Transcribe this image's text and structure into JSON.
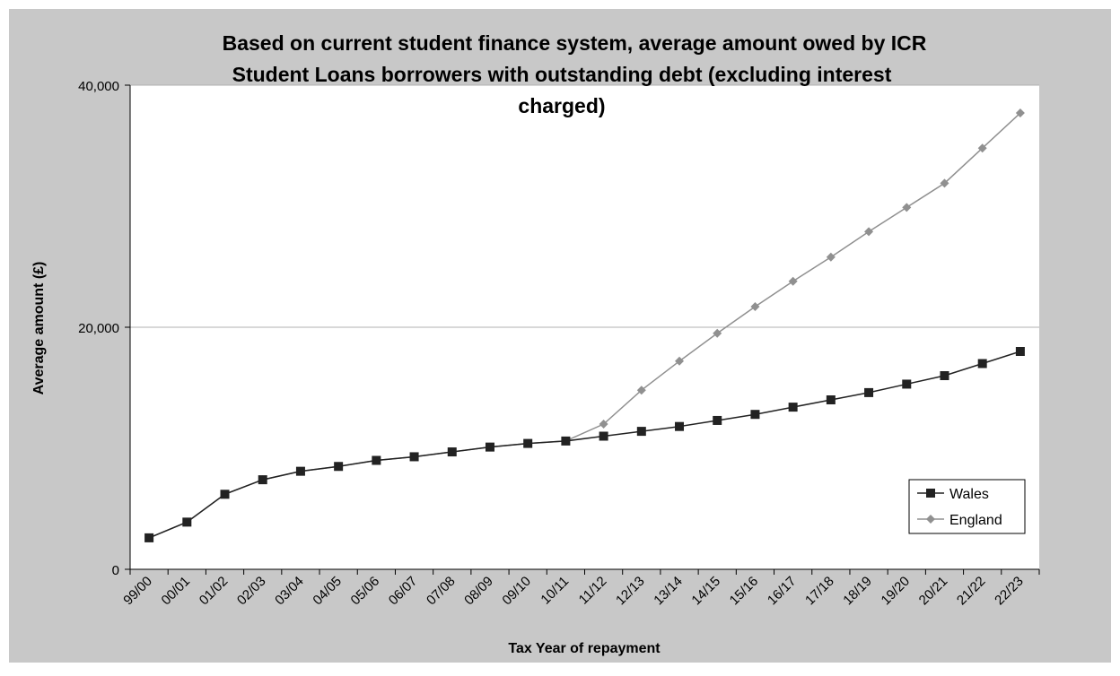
{
  "chart_data": {
    "type": "line",
    "title_lines": [
      "Based on current student finance system, average amount owed by ICR",
      "Student Loans borrowers with outstanding debt (excluding interest",
      "charged)"
    ],
    "xlabel": "Tax Year of repayment",
    "ylabel": "Average amount (£)",
    "ylim": [
      0,
      40000
    ],
    "y_ticks": [
      0,
      20000,
      40000
    ],
    "y_tick_labels": [
      "0",
      "20,000",
      "40,000"
    ],
    "grid": "horizontal",
    "legend_position": "bottom-right",
    "categories": [
      "99/00",
      "00/01",
      "01/02",
      "02/03",
      "03/04",
      "04/05",
      "05/06",
      "06/07",
      "07/08",
      "08/09",
      "09/10",
      "10/11",
      "11/12",
      "12/13",
      "13/14",
      "14/15",
      "15/16",
      "16/17",
      "17/18",
      "18/19",
      "19/20",
      "20/21",
      "21/22",
      "22/23"
    ],
    "series": [
      {
        "name": "Wales",
        "color": "#222222",
        "marker": "square",
        "values": [
          2600,
          3900,
          6200,
          7400,
          8100,
          8500,
          9000,
          9300,
          9700,
          10100,
          10400,
          10600,
          11000,
          11400,
          11800,
          12300,
          12800,
          13400,
          14000,
          14600,
          15300,
          16000,
          17000,
          18000
        ]
      },
      {
        "name": "England",
        "color": "#909090",
        "marker": "diamond",
        "values": [
          2600,
          3900,
          6200,
          7400,
          8100,
          8500,
          9000,
          9300,
          9700,
          10100,
          10400,
          10600,
          12000,
          14800,
          17200,
          19500,
          21700,
          23800,
          25800,
          27900,
          29900,
          31900,
          34800,
          37700
        ]
      }
    ]
  }
}
